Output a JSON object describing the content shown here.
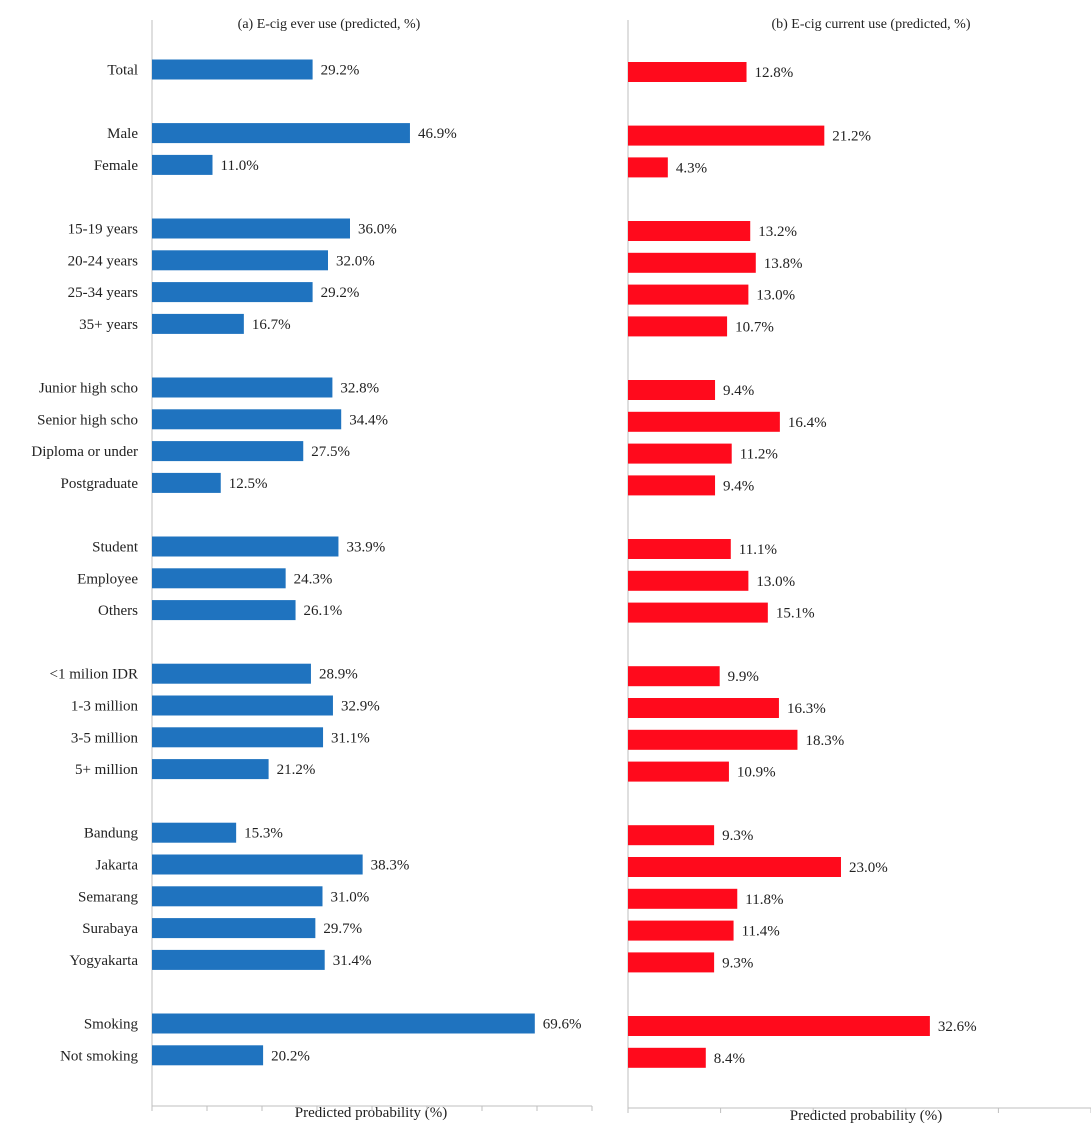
{
  "chart_data": {
    "type": "bar",
    "orientation": "horizontal",
    "categories": [
      "Total",
      "Male",
      "Female",
      "15-19 years",
      "20-24 years",
      "25-34 years",
      "35+ years",
      "Junior high scho",
      "Senior high scho",
      "Diploma or under",
      "Postgraduate",
      "Student",
      "Employee",
      "Others",
      "<1 milion IDR",
      "1-3 million",
      "3-5 million",
      "5+ million",
      "Bandung",
      "Jakarta",
      "Semarang",
      "Surabaya",
      "Yogyakarta",
      "Smoking",
      "Not smoking"
    ],
    "groups": [
      1,
      2,
      4,
      4,
      3,
      4,
      5,
      2
    ],
    "panels": [
      {
        "title": "(a) E-cig ever use (predicted, %)",
        "xlabel": "Predicted probability (%)",
        "color": "#1f73bf",
        "xlim": [
          0,
          80
        ],
        "values": [
          29.2,
          46.9,
          11.0,
          36.0,
          32.0,
          29.2,
          16.7,
          32.8,
          34.4,
          27.5,
          12.5,
          33.9,
          24.3,
          26.1,
          28.9,
          32.9,
          31.1,
          21.2,
          15.3,
          38.3,
          31.0,
          29.7,
          31.4,
          69.6,
          20.2
        ],
        "labels": [
          "29.2%",
          "46.9%",
          "11.0%",
          "36.0%",
          "32.0%",
          "29.2%",
          "16.7%",
          "32.8%",
          "34.4%",
          "27.5%",
          "12.5%",
          "33.9%",
          "24.3%",
          "26.1%",
          "28.9%",
          "32.9%",
          "31.1%",
          "21.2%",
          "15.3%",
          "38.3%",
          "31.0%",
          "29.7%",
          "31.4%",
          "69.6%",
          "20.2%"
        ]
      },
      {
        "title": "(b) E-cig current use (predicted, %)",
        "xlabel": "Predicted probability (%)",
        "color": "#ff0a1c",
        "xlim": [
          0,
          50
        ],
        "values": [
          12.8,
          21.2,
          4.3,
          13.2,
          13.8,
          13.0,
          10.7,
          9.4,
          16.4,
          11.2,
          9.4,
          11.1,
          13.0,
          15.1,
          9.9,
          16.3,
          18.3,
          10.9,
          9.3,
          23.0,
          11.8,
          11.4,
          9.3,
          32.6,
          8.4
        ],
        "labels": [
          "12.8%",
          "21.2%",
          "4.3%",
          "13.2%",
          "13.8%",
          "13.0%",
          "10.7%",
          "9.4%",
          "16.4%",
          "11.2%",
          "9.4%",
          "11.1%",
          "13.0%",
          "15.1%",
          "9.9%",
          "16.3%",
          "18.3%",
          "10.9%",
          "9.3%",
          "23.0%",
          "11.8%",
          "11.4%",
          "9.3%",
          "32.6%",
          "8.4%"
        ]
      }
    ],
    "grid": false,
    "legend": "none"
  }
}
